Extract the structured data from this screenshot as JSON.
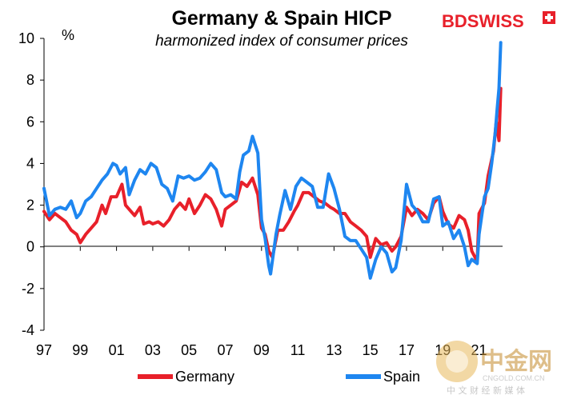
{
  "chart_data": {
    "type": "line",
    "title": "Germany & Spain HICP",
    "subtitle": "harmonized index of consumer prices",
    "ylabel": "%",
    "ylim": [
      -4,
      10
    ],
    "yticks": [
      10,
      8,
      6,
      4,
      2,
      0,
      -2,
      -4
    ],
    "xlim": [
      1997.0,
      2022.3
    ],
    "xtick_labels": [
      "97",
      "99",
      "01",
      "03",
      "05",
      "07",
      "09",
      "11",
      "13",
      "15",
      "17",
      "19",
      "21"
    ],
    "xtick_values": [
      1997,
      1999,
      2001,
      2003,
      2005,
      2007,
      2009,
      2011,
      2013,
      2015,
      2017,
      2019,
      2021
    ],
    "grid": false,
    "legend_position": "bottom",
    "series": [
      {
        "name": "Germany",
        "color": "#e8202a",
        "points": [
          [
            1997.0,
            1.7
          ],
          [
            1997.3,
            1.3
          ],
          [
            1997.6,
            1.6
          ],
          [
            1997.9,
            1.4
          ],
          [
            1998.2,
            1.2
          ],
          [
            1998.5,
            0.8
          ],
          [
            1998.8,
            0.6
          ],
          [
            1999.0,
            0.2
          ],
          [
            1999.3,
            0.6
          ],
          [
            1999.6,
            0.9
          ],
          [
            1999.9,
            1.2
          ],
          [
            2000.2,
            2.0
          ],
          [
            2000.4,
            1.6
          ],
          [
            2000.7,
            2.4
          ],
          [
            2001.0,
            2.4
          ],
          [
            2001.3,
            3.0
          ],
          [
            2001.5,
            2.0
          ],
          [
            2001.8,
            1.7
          ],
          [
            2002.0,
            1.5
          ],
          [
            2002.3,
            1.9
          ],
          [
            2002.5,
            1.1
          ],
          [
            2002.8,
            1.2
          ],
          [
            2003.0,
            1.1
          ],
          [
            2003.3,
            1.2
          ],
          [
            2003.6,
            1.0
          ],
          [
            2003.9,
            1.3
          ],
          [
            2004.2,
            1.8
          ],
          [
            2004.5,
            2.1
          ],
          [
            2004.8,
            1.8
          ],
          [
            2005.0,
            2.3
          ],
          [
            2005.3,
            1.6
          ],
          [
            2005.6,
            2.0
          ],
          [
            2005.9,
            2.5
          ],
          [
            2006.2,
            2.3
          ],
          [
            2006.5,
            1.8
          ],
          [
            2006.8,
            1.0
          ],
          [
            2007.0,
            1.8
          ],
          [
            2007.3,
            2.0
          ],
          [
            2007.6,
            2.2
          ],
          [
            2007.9,
            3.1
          ],
          [
            2008.2,
            2.9
          ],
          [
            2008.5,
            3.3
          ],
          [
            2008.8,
            2.5
          ],
          [
            2009.0,
            0.9
          ],
          [
            2009.2,
            0.6
          ],
          [
            2009.4,
            -0.2
          ],
          [
            2009.6,
            -0.5
          ],
          [
            2009.9,
            0.8
          ],
          [
            2010.2,
            0.8
          ],
          [
            2010.5,
            1.2
          ],
          [
            2010.8,
            1.7
          ],
          [
            2011.0,
            2.0
          ],
          [
            2011.3,
            2.6
          ],
          [
            2011.6,
            2.6
          ],
          [
            2011.9,
            2.4
          ],
          [
            2012.2,
            2.2
          ],
          [
            2012.5,
            2.1
          ],
          [
            2012.8,
            1.9
          ],
          [
            2013.0,
            1.8
          ],
          [
            2013.3,
            1.6
          ],
          [
            2013.6,
            1.6
          ],
          [
            2013.9,
            1.2
          ],
          [
            2014.2,
            1.0
          ],
          [
            2014.5,
            0.8
          ],
          [
            2014.8,
            0.5
          ],
          [
            2015.0,
            -0.5
          ],
          [
            2015.3,
            0.4
          ],
          [
            2015.6,
            0.1
          ],
          [
            2015.9,
            0.2
          ],
          [
            2016.2,
            -0.2
          ],
          [
            2016.4,
            0.0
          ],
          [
            2016.7,
            0.5
          ],
          [
            2017.0,
            1.9
          ],
          [
            2017.3,
            1.5
          ],
          [
            2017.6,
            1.8
          ],
          [
            2017.9,
            1.6
          ],
          [
            2018.2,
            1.3
          ],
          [
            2018.5,
            2.1
          ],
          [
            2018.8,
            2.4
          ],
          [
            2019.0,
            1.7
          ],
          [
            2019.3,
            1.1
          ],
          [
            2019.6,
            0.9
          ],
          [
            2019.9,
            1.5
          ],
          [
            2020.2,
            1.3
          ],
          [
            2020.4,
            0.8
          ],
          [
            2020.6,
            -0.2
          ],
          [
            2020.9,
            -0.7
          ],
          [
            2021.0,
            1.6
          ],
          [
            2021.3,
            2.1
          ],
          [
            2021.5,
            3.4
          ],
          [
            2021.8,
            4.6
          ],
          [
            2021.95,
            6.0
          ],
          [
            2022.1,
            5.1
          ],
          [
            2022.2,
            7.6
          ]
        ]
      },
      {
        "name": "Spain",
        "color": "#1e86f0",
        "points": [
          [
            1997.0,
            2.8
          ],
          [
            1997.3,
            1.5
          ],
          [
            1997.6,
            1.8
          ],
          [
            1997.9,
            1.9
          ],
          [
            1998.2,
            1.8
          ],
          [
            1998.5,
            2.2
          ],
          [
            1998.8,
            1.4
          ],
          [
            1999.0,
            1.6
          ],
          [
            1999.3,
            2.2
          ],
          [
            1999.6,
            2.4
          ],
          [
            1999.9,
            2.8
          ],
          [
            2000.2,
            3.2
          ],
          [
            2000.5,
            3.5
          ],
          [
            2000.8,
            4.0
          ],
          [
            2001.0,
            3.9
          ],
          [
            2001.2,
            3.5
          ],
          [
            2001.5,
            3.8
          ],
          [
            2001.7,
            2.5
          ],
          [
            2002.0,
            3.2
          ],
          [
            2002.3,
            3.7
          ],
          [
            2002.6,
            3.5
          ],
          [
            2002.9,
            4.0
          ],
          [
            2003.2,
            3.8
          ],
          [
            2003.5,
            3.0
          ],
          [
            2003.8,
            2.8
          ],
          [
            2004.1,
            2.2
          ],
          [
            2004.4,
            3.4
          ],
          [
            2004.7,
            3.3
          ],
          [
            2005.0,
            3.4
          ],
          [
            2005.3,
            3.2
          ],
          [
            2005.6,
            3.3
          ],
          [
            2005.9,
            3.6
          ],
          [
            2006.2,
            4.0
          ],
          [
            2006.5,
            3.7
          ],
          [
            2006.8,
            2.6
          ],
          [
            2007.0,
            2.4
          ],
          [
            2007.3,
            2.5
          ],
          [
            2007.6,
            2.3
          ],
          [
            2007.8,
            3.6
          ],
          [
            2008.0,
            4.4
          ],
          [
            2008.3,
            4.6
          ],
          [
            2008.5,
            5.3
          ],
          [
            2008.8,
            4.5
          ],
          [
            2009.0,
            1.3
          ],
          [
            2009.2,
            0.4
          ],
          [
            2009.4,
            -0.9
          ],
          [
            2009.5,
            -1.3
          ],
          [
            2009.8,
            0.6
          ],
          [
            2010.0,
            1.5
          ],
          [
            2010.3,
            2.7
          ],
          [
            2010.6,
            1.8
          ],
          [
            2010.9,
            2.9
          ],
          [
            2011.2,
            3.3
          ],
          [
            2011.5,
            3.1
          ],
          [
            2011.8,
            2.9
          ],
          [
            2012.1,
            1.9
          ],
          [
            2012.4,
            1.9
          ],
          [
            2012.7,
            3.5
          ],
          [
            2013.0,
            2.8
          ],
          [
            2013.3,
            1.8
          ],
          [
            2013.6,
            0.5
          ],
          [
            2013.9,
            0.3
          ],
          [
            2014.2,
            0.3
          ],
          [
            2014.5,
            -0.1
          ],
          [
            2014.8,
            -0.5
          ],
          [
            2015.0,
            -1.5
          ],
          [
            2015.3,
            -0.6
          ],
          [
            2015.6,
            0.0
          ],
          [
            2015.9,
            -0.3
          ],
          [
            2016.2,
            -1.2
          ],
          [
            2016.4,
            -1.0
          ],
          [
            2016.7,
            0.3
          ],
          [
            2017.0,
            3.0
          ],
          [
            2017.3,
            2.0
          ],
          [
            2017.6,
            1.7
          ],
          [
            2017.9,
            1.2
          ],
          [
            2018.2,
            1.2
          ],
          [
            2018.5,
            2.3
          ],
          [
            2018.8,
            2.4
          ],
          [
            2019.0,
            1.0
          ],
          [
            2019.3,
            1.2
          ],
          [
            2019.6,
            0.4
          ],
          [
            2019.9,
            0.8
          ],
          [
            2020.2,
            0.0
          ],
          [
            2020.4,
            -0.9
          ],
          [
            2020.6,
            -0.6
          ],
          [
            2020.9,
            -0.8
          ],
          [
            2021.0,
            0.6
          ],
          [
            2021.3,
            2.4
          ],
          [
            2021.5,
            2.8
          ],
          [
            2021.7,
            4.0
          ],
          [
            2021.9,
            5.5
          ],
          [
            2022.0,
            6.6
          ],
          [
            2022.1,
            7.6
          ],
          [
            2022.2,
            9.8
          ]
        ]
      }
    ]
  },
  "logo": {
    "text": "BDSWISS"
  },
  "watermark": {
    "big": "中金网",
    "url": "CNGOLD.COM.CN",
    "cn": "中 文 财 经 新 媒 体"
  }
}
